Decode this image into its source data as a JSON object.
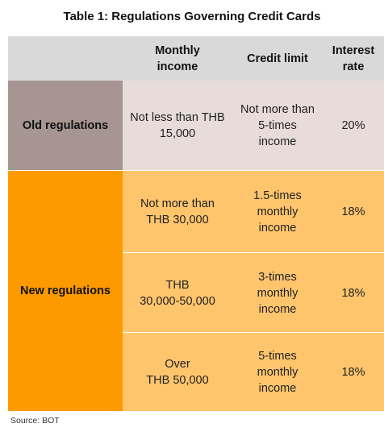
{
  "title": "Table 1: Regulations Governing Credit Cards",
  "headers": {
    "label": "",
    "monthly_income": "Monthly\nincome",
    "credit_limit": "Credit limit",
    "interest_rate": "Interest\nrate"
  },
  "old_regulations": {
    "label": "Old regulations",
    "monthly_income": "Not less than THB\n15,000",
    "credit_limit": "Not more than\n5-times\nincome",
    "interest_rate": "20%"
  },
  "new_regulations": {
    "label": "New regulations",
    "rows": [
      {
        "monthly_income": "Not more than\nTHB 30,000",
        "credit_limit": "1.5-times\nmonthly\nincome",
        "interest_rate": "18%"
      },
      {
        "monthly_income": "THB\n30,000-50,000",
        "credit_limit": "3-times\nmonthly\nincome",
        "interest_rate": "18%"
      },
      {
        "monthly_income": "Over\nTHB 50,000",
        "credit_limit": "5-times\nmonthly\nincome",
        "interest_rate": "18%"
      }
    ]
  },
  "source": "Source: BOT",
  "colors": {
    "header_bg": "#d9d9d9",
    "old_label_bg": "#a79591",
    "old_data_bg": "#e7dcda",
    "new_label_bg": "#fc9a00",
    "new_data_bg": "#fec56d"
  }
}
